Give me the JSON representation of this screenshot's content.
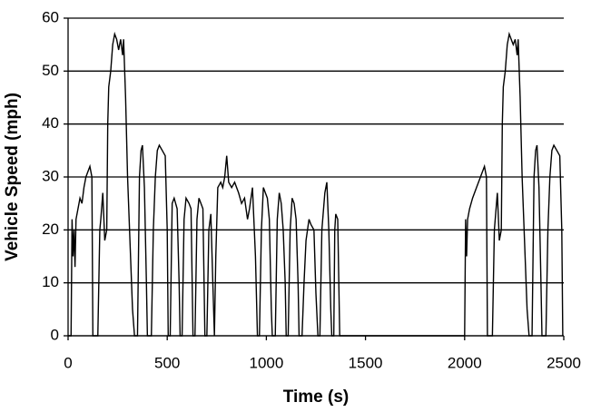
{
  "chart_data": {
    "type": "line",
    "x_label": "Time (s)",
    "y_label": "Vehicle Speed (mph)",
    "color": "#000000",
    "grid": true,
    "xlim": [
      0,
      2500
    ],
    "xticks": [
      0,
      500,
      1000,
      1500,
      2000,
      2500
    ],
    "ylim": [
      0,
      60
    ],
    "yticks": [
      0,
      10,
      20,
      30,
      40,
      50,
      60
    ],
    "x": [
      0,
      15,
      20,
      25,
      30,
      35,
      40,
      50,
      60,
      70,
      80,
      90,
      100,
      110,
      120,
      125,
      150,
      160,
      165,
      175,
      185,
      195,
      200,
      205,
      215,
      225,
      235,
      245,
      255,
      265,
      275,
      280,
      290,
      300,
      310,
      325,
      335,
      350,
      360,
      368,
      375,
      385,
      395,
      400,
      420,
      430,
      440,
      450,
      460,
      475,
      490,
      500,
      505,
      515,
      525,
      535,
      550,
      560,
      565,
      575,
      585,
      595,
      610,
      620,
      630,
      640,
      650,
      660,
      670,
      680,
      690,
      700,
      710,
      720,
      730,
      738,
      745,
      755,
      770,
      780,
      790,
      800,
      810,
      825,
      840,
      860,
      875,
      890,
      905,
      915,
      930,
      945,
      955,
      965,
      975,
      985,
      995,
      1005,
      1015,
      1025,
      1030,
      1045,
      1055,
      1065,
      1075,
      1085,
      1095,
      1100,
      1110,
      1120,
      1130,
      1140,
      1150,
      1160,
      1165,
      1180,
      1190,
      1200,
      1215,
      1225,
      1240,
      1250,
      1260,
      1270,
      1280,
      1295,
      1305,
      1315,
      1325,
      1330,
      1340,
      1345,
      1350,
      1360,
      1370,
      1990,
      2000,
      2005,
      2010,
      2015,
      2025,
      2040,
      2060,
      2080,
      2090,
      2100,
      2110,
      2115,
      2140,
      2150,
      2165,
      2175,
      2185,
      2190,
      2195,
      2205,
      2215,
      2225,
      2235,
      2245,
      2255,
      2265,
      2270,
      2280,
      2290,
      2300,
      2315,
      2325,
      2340,
      2350,
      2358,
      2365,
      2375,
      2385,
      2390,
      2410,
      2420,
      2430,
      2440,
      2450,
      2465,
      2480,
      2490,
      2495
    ],
    "values": [
      0,
      0,
      22,
      15,
      20,
      13,
      22,
      24,
      26,
      25,
      28,
      30,
      31,
      32,
      30,
      0,
      0,
      20,
      22,
      27,
      18,
      20,
      40,
      47,
      50,
      55,
      57,
      56,
      54,
      56,
      53,
      56,
      45,
      30,
      20,
      5,
      0,
      0,
      30,
      35,
      36,
      28,
      10,
      0,
      0,
      20,
      30,
      35,
      36,
      35,
      34,
      20,
      0,
      0,
      25,
      26,
      24,
      10,
      0,
      0,
      22,
      26,
      25,
      24,
      0,
      0,
      22,
      26,
      25,
      24,
      0,
      0,
      20,
      23,
      10,
      0,
      15,
      28,
      29,
      28,
      30,
      34,
      29,
      28,
      29,
      27,
      25,
      26,
      22,
      24,
      28,
      15,
      0,
      0,
      20,
      28,
      27,
      26,
      22,
      5,
      0,
      0,
      22,
      27,
      25,
      20,
      10,
      0,
      0,
      20,
      26,
      25,
      22,
      10,
      0,
      0,
      10,
      18,
      22,
      21,
      20,
      8,
      0,
      0,
      20,
      27,
      29,
      20,
      5,
      0,
      0,
      20,
      23,
      22,
      0,
      0,
      0,
      22,
      15,
      22,
      24,
      26,
      28,
      30,
      31,
      32,
      30,
      0,
      0,
      20,
      27,
      18,
      20,
      40,
      47,
      50,
      55,
      57,
      56,
      55,
      56,
      53,
      56,
      45,
      30,
      20,
      5,
      0,
      0,
      30,
      35,
      36,
      28,
      10,
      0,
      0,
      20,
      30,
      35,
      36,
      35,
      34,
      20,
      0
    ]
  }
}
